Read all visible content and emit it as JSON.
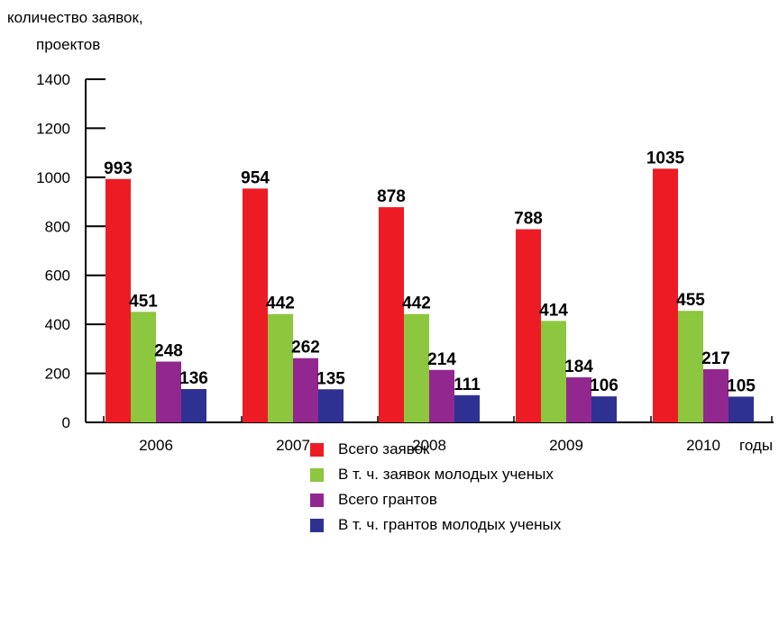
{
  "chart_data": {
    "type": "bar",
    "ylabel_line1": "количество заявок,",
    "ylabel_line2": "проектов",
    "xlabel": "годы",
    "categories": [
      "2006",
      "2007",
      "2008",
      "2009",
      "2010"
    ],
    "ylim": [
      0,
      1400
    ],
    "yticks": [
      0,
      200,
      400,
      600,
      800,
      1000,
      1200,
      1400
    ],
    "series": [
      {
        "name": "Всего заявок",
        "color": "#ed1c24",
        "values": [
          993,
          954,
          878,
          788,
          1035
        ]
      },
      {
        "name": "В т. ч. заявок молодых ученых",
        "color": "#8dc63f",
        "values": [
          451,
          442,
          442,
          414,
          455
        ]
      },
      {
        "name": "Всего грантов",
        "color": "#92278f",
        "values": [
          248,
          262,
          214,
          184,
          217
        ]
      },
      {
        "name": "В т. ч. грантов молодых ученых",
        "color": "#2e3192",
        "values": [
          136,
          135,
          111,
          106,
          105
        ]
      }
    ],
    "grid": false,
    "legend_position": "bottom-center"
  }
}
